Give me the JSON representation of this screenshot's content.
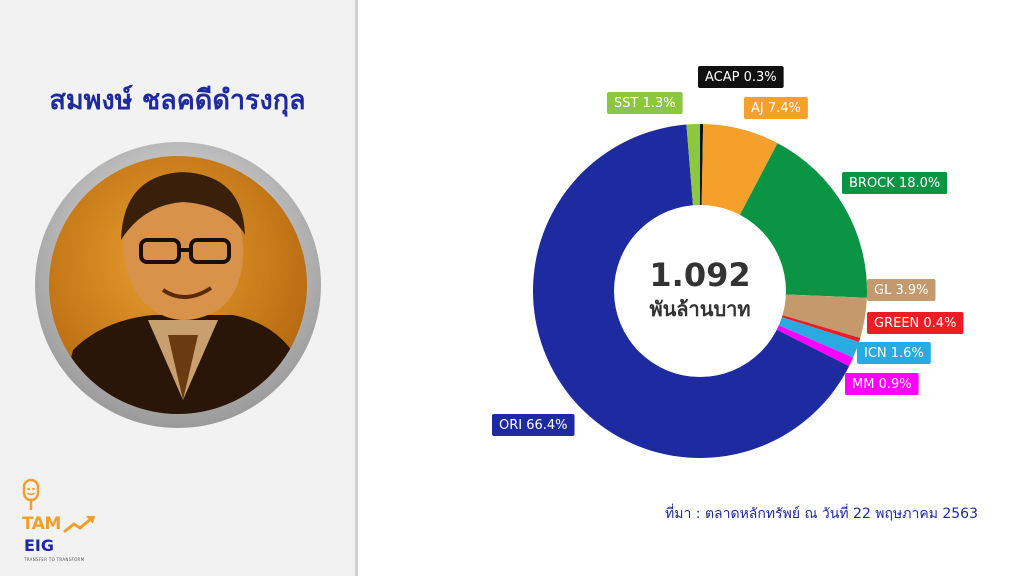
{
  "person_name": "สมพงษ์ ชลคดีดำรงกุล",
  "logo": {
    "line1": "TAM",
    "line2": "EIG",
    "tagline": "TRANSFER TO TRANSFORM",
    "icon": "microphone-icon"
  },
  "source_note": "ที่มา : ตลาดหลักทรัพย์ ณ วันที่ 22 พฤษภาคม 2563",
  "chart_data": {
    "type": "donut",
    "center_value": "1.092",
    "center_unit": "พันล้านบาท",
    "slices": [
      {
        "name": "ACAP",
        "value": 0.3,
        "label": "ACAP 0.3%",
        "color": "#111111"
      },
      {
        "name": "AJ",
        "value": 7.4,
        "label": "AJ 7.4%",
        "color": "#f5a02a"
      },
      {
        "name": "BROCK",
        "value": 18.0,
        "label": "BROCK 18.0%",
        "color": "#0b9444"
      },
      {
        "name": "GL",
        "value": 3.9,
        "label": "GL 3.9%",
        "color": "#c49a6c"
      },
      {
        "name": "GREEN",
        "value": 0.4,
        "label": "GREEN 0.4%",
        "color": "#ee1c24"
      },
      {
        "name": "ICN",
        "value": 1.6,
        "label": "ICN 1.6%",
        "color": "#29abe2"
      },
      {
        "name": "MM",
        "value": 0.9,
        "label": "MM 0.9%",
        "color": "#ff00ff"
      },
      {
        "name": "ORI",
        "value": 66.4,
        "label": "ORI 66.4%",
        "color": "#1e2aa0"
      },
      {
        "name": "SST",
        "value": 1.3,
        "label": "SST 1.3%",
        "color": "#8dc63f"
      }
    ]
  }
}
